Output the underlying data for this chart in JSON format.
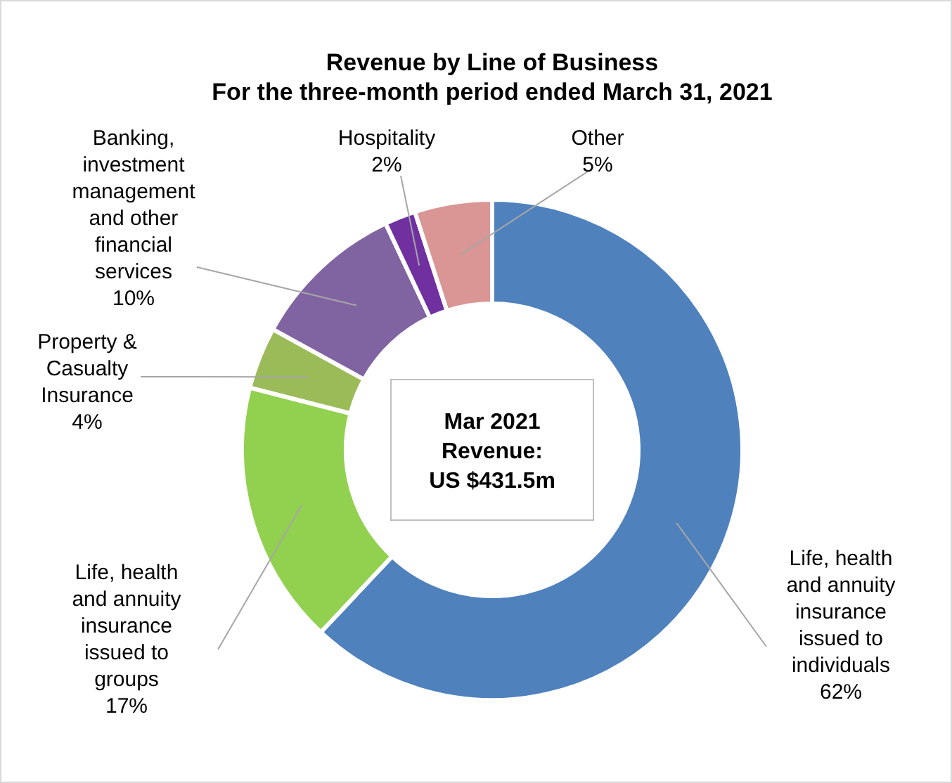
{
  "chart_data": {
    "type": "donut",
    "title": "Revenue by Line of Business",
    "subtitle": "For the three-month period ended March 31, 2021",
    "categories": [
      "Life, health and annuity insurance issued to individuals",
      "Life, health and annuity insurance issued to groups",
      "Property & Casualty Insurance",
      "Banking, investment management and other financial services",
      "Hospitality",
      "Other"
    ],
    "values": [
      62,
      17,
      4,
      10,
      2,
      5
    ],
    "colors": [
      "#4f81bd",
      "#92d050",
      "#9bbb59",
      "#8064a2",
      "#7030a0",
      "#d99694"
    ],
    "value_labels": [
      "62%",
      "17%",
      "4%",
      "10%",
      "2%",
      "5%"
    ],
    "annotations": [
      "Mar 2021 Revenue: US $431.5m"
    ]
  }
}
